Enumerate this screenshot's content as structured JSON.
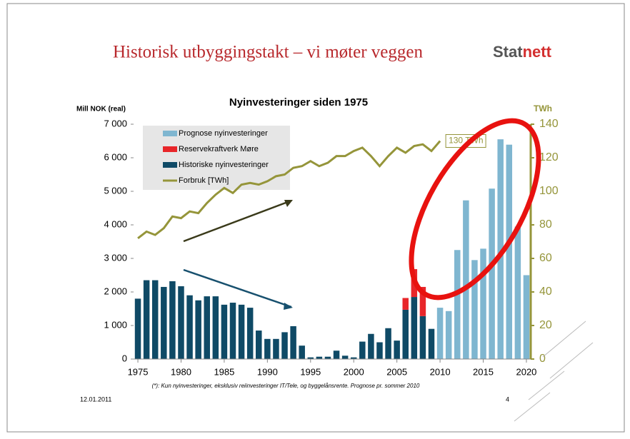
{
  "slide": {
    "title": "Historisk utbyggingstakt – vi møter veggen",
    "logo_a": "Stat",
    "logo_b": "nett",
    "date": "12.01.2011",
    "page": "4"
  },
  "chart_data": {
    "type": "bar",
    "title": "Nyinvesteringer siden 1975",
    "ylabel": "Mill NOK (real)",
    "y2label": "TWh",
    "footnote": "(*): Kun nyinvesteringer, eksklusiv reiinvesteringer IT/Tele, og byggelånsrente. Prognose pr. sommer 2010",
    "annotation": "130 TWh",
    "x": [
      1975,
      1976,
      1977,
      1978,
      1979,
      1980,
      1981,
      1982,
      1983,
      1984,
      1985,
      1986,
      1987,
      1988,
      1989,
      1990,
      1991,
      1992,
      1993,
      1994,
      1995,
      1996,
      1997,
      1998,
      1999,
      2000,
      2001,
      2002,
      2003,
      2004,
      2005,
      2006,
      2007,
      2008,
      2009,
      2010,
      2011,
      2012,
      2013,
      2014,
      2015,
      2016,
      2017,
      2018,
      2019,
      2020
    ],
    "xlim": [
      1974.5,
      2020.5
    ],
    "xticks": [
      1975,
      1980,
      1985,
      1990,
      1995,
      2000,
      2005,
      2010,
      2015,
      2020
    ],
    "ylim": [
      0,
      7000
    ],
    "yticks": [
      0,
      {
        "value": 1000,
        "label": "1 000"
      },
      {
        "value": 2000,
        "label": "2 000"
      },
      {
        "value": 3000,
        "label": "3 000"
      },
      {
        "value": 4000,
        "label": "4 000"
      },
      {
        "value": 5000,
        "label": "5 000"
      },
      {
        "value": 6000,
        "label": "6 000"
      },
      {
        "value": 7000,
        "label": "7 000"
      }
    ],
    "y2lim": [
      0,
      140
    ],
    "y2ticks": [
      0,
      20,
      40,
      60,
      80,
      100,
      120,
      140
    ],
    "series": [
      {
        "name": "Prognose nyinvesteringer",
        "color": "#7fb6d0",
        "type": "bar",
        "values": [
          null,
          null,
          null,
          null,
          null,
          null,
          null,
          null,
          null,
          null,
          null,
          null,
          null,
          null,
          null,
          null,
          null,
          null,
          null,
          null,
          null,
          null,
          null,
          null,
          null,
          null,
          null,
          null,
          null,
          null,
          null,
          null,
          null,
          null,
          null,
          1530,
          1430,
          3250,
          4730,
          2950,
          3290,
          5080,
          6550,
          6390,
          3950,
          2500
        ]
      },
      {
        "name": "Reservekraftverk Møre",
        "color": "#e8262a",
        "type": "bar",
        "values": [
          null,
          null,
          null,
          null,
          null,
          null,
          null,
          null,
          null,
          null,
          null,
          null,
          null,
          null,
          null,
          null,
          null,
          null,
          null,
          null,
          null,
          null,
          null,
          null,
          null,
          null,
          null,
          null,
          null,
          null,
          null,
          350,
          830,
          870,
          null,
          null,
          null,
          null,
          null,
          null,
          null,
          null,
          null,
          null,
          null,
          null
        ]
      },
      {
        "name": "Historiske nyinvesteringer",
        "color": "#0f4a66",
        "type": "bar",
        "values": [
          1800,
          2350,
          2350,
          2150,
          2320,
          2170,
          1900,
          1750,
          1870,
          1870,
          1620,
          1680,
          1620,
          1530,
          850,
          600,
          600,
          800,
          980,
          400,
          50,
          70,
          70,
          250,
          100,
          50,
          520,
          750,
          500,
          920,
          550,
          1470,
          1850,
          1280,
          900,
          null,
          null,
          null,
          null,
          null,
          null,
          null,
          null,
          null,
          null,
          null
        ]
      },
      {
        "name": "Forbruk [TWh]",
        "color": "#95953a",
        "type": "line",
        "axis": "y2",
        "values": [
          72,
          76,
          74,
          78,
          85,
          84,
          88,
          87,
          93,
          98,
          102,
          99,
          104,
          105,
          104,
          106,
          109,
          110,
          114,
          115,
          118,
          115,
          117,
          121,
          121,
          124,
          126,
          121,
          115,
          121,
          126,
          123,
          127,
          128,
          124,
          130,
          null,
          null,
          null,
          null,
          null,
          null,
          null,
          null,
          null,
          null
        ]
      }
    ]
  }
}
